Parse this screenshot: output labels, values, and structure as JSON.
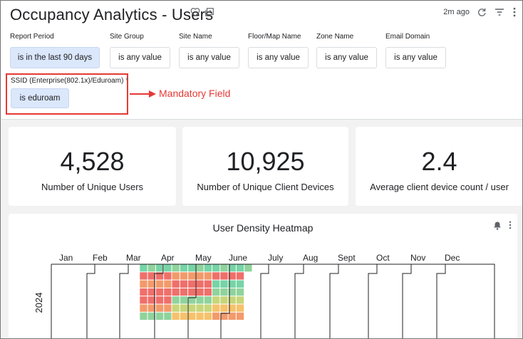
{
  "header": {
    "title": "Occupancy Analytics - Users",
    "updated": "2m ago"
  },
  "filters": [
    {
      "label": "Report Period",
      "value": "is in the last 90 days",
      "active": true
    },
    {
      "label": "Site Group",
      "value": "is any value"
    },
    {
      "label": "Site Name",
      "value": "is any value"
    },
    {
      "label": "Floor/Map Name",
      "value": "is any value"
    },
    {
      "label": "Zone Name",
      "value": "is any value"
    },
    {
      "label": "Email Domain",
      "value": "is any value"
    }
  ],
  "ssid_filter": {
    "label": "SSID (Enterprise(802.1x)/Eduroam)",
    "required_mark": "*",
    "value": "is eduroam",
    "annotation": "Mandatory Field",
    "annotation_color": "#e53935"
  },
  "kpis": [
    {
      "value": "4,528",
      "label": "Number of Unique Users"
    },
    {
      "value": "10,925",
      "label": "Number of Unique Client Devices"
    },
    {
      "value": "2.4",
      "label": "Average client device count / user"
    }
  ],
  "heatmap": {
    "title": "User Density Heatmap",
    "year": "2024",
    "months": [
      "Jan",
      "Feb",
      "Mar",
      "Apr",
      "May",
      "June",
      "July",
      "Aug",
      "Sept",
      "Oct",
      "Nov",
      "Dec"
    ],
    "colors": {
      "high": "#ef6f6a",
      "medium_high": "#f39a6b",
      "medium": "#f6c26b",
      "medium_low": "#c7d67a",
      "low": "#8fd39c",
      "lowest": "#76d4a6"
    }
  },
  "colors": {
    "accent_chip": "#dbe7fb",
    "page_background": "#f2f2f2"
  }
}
